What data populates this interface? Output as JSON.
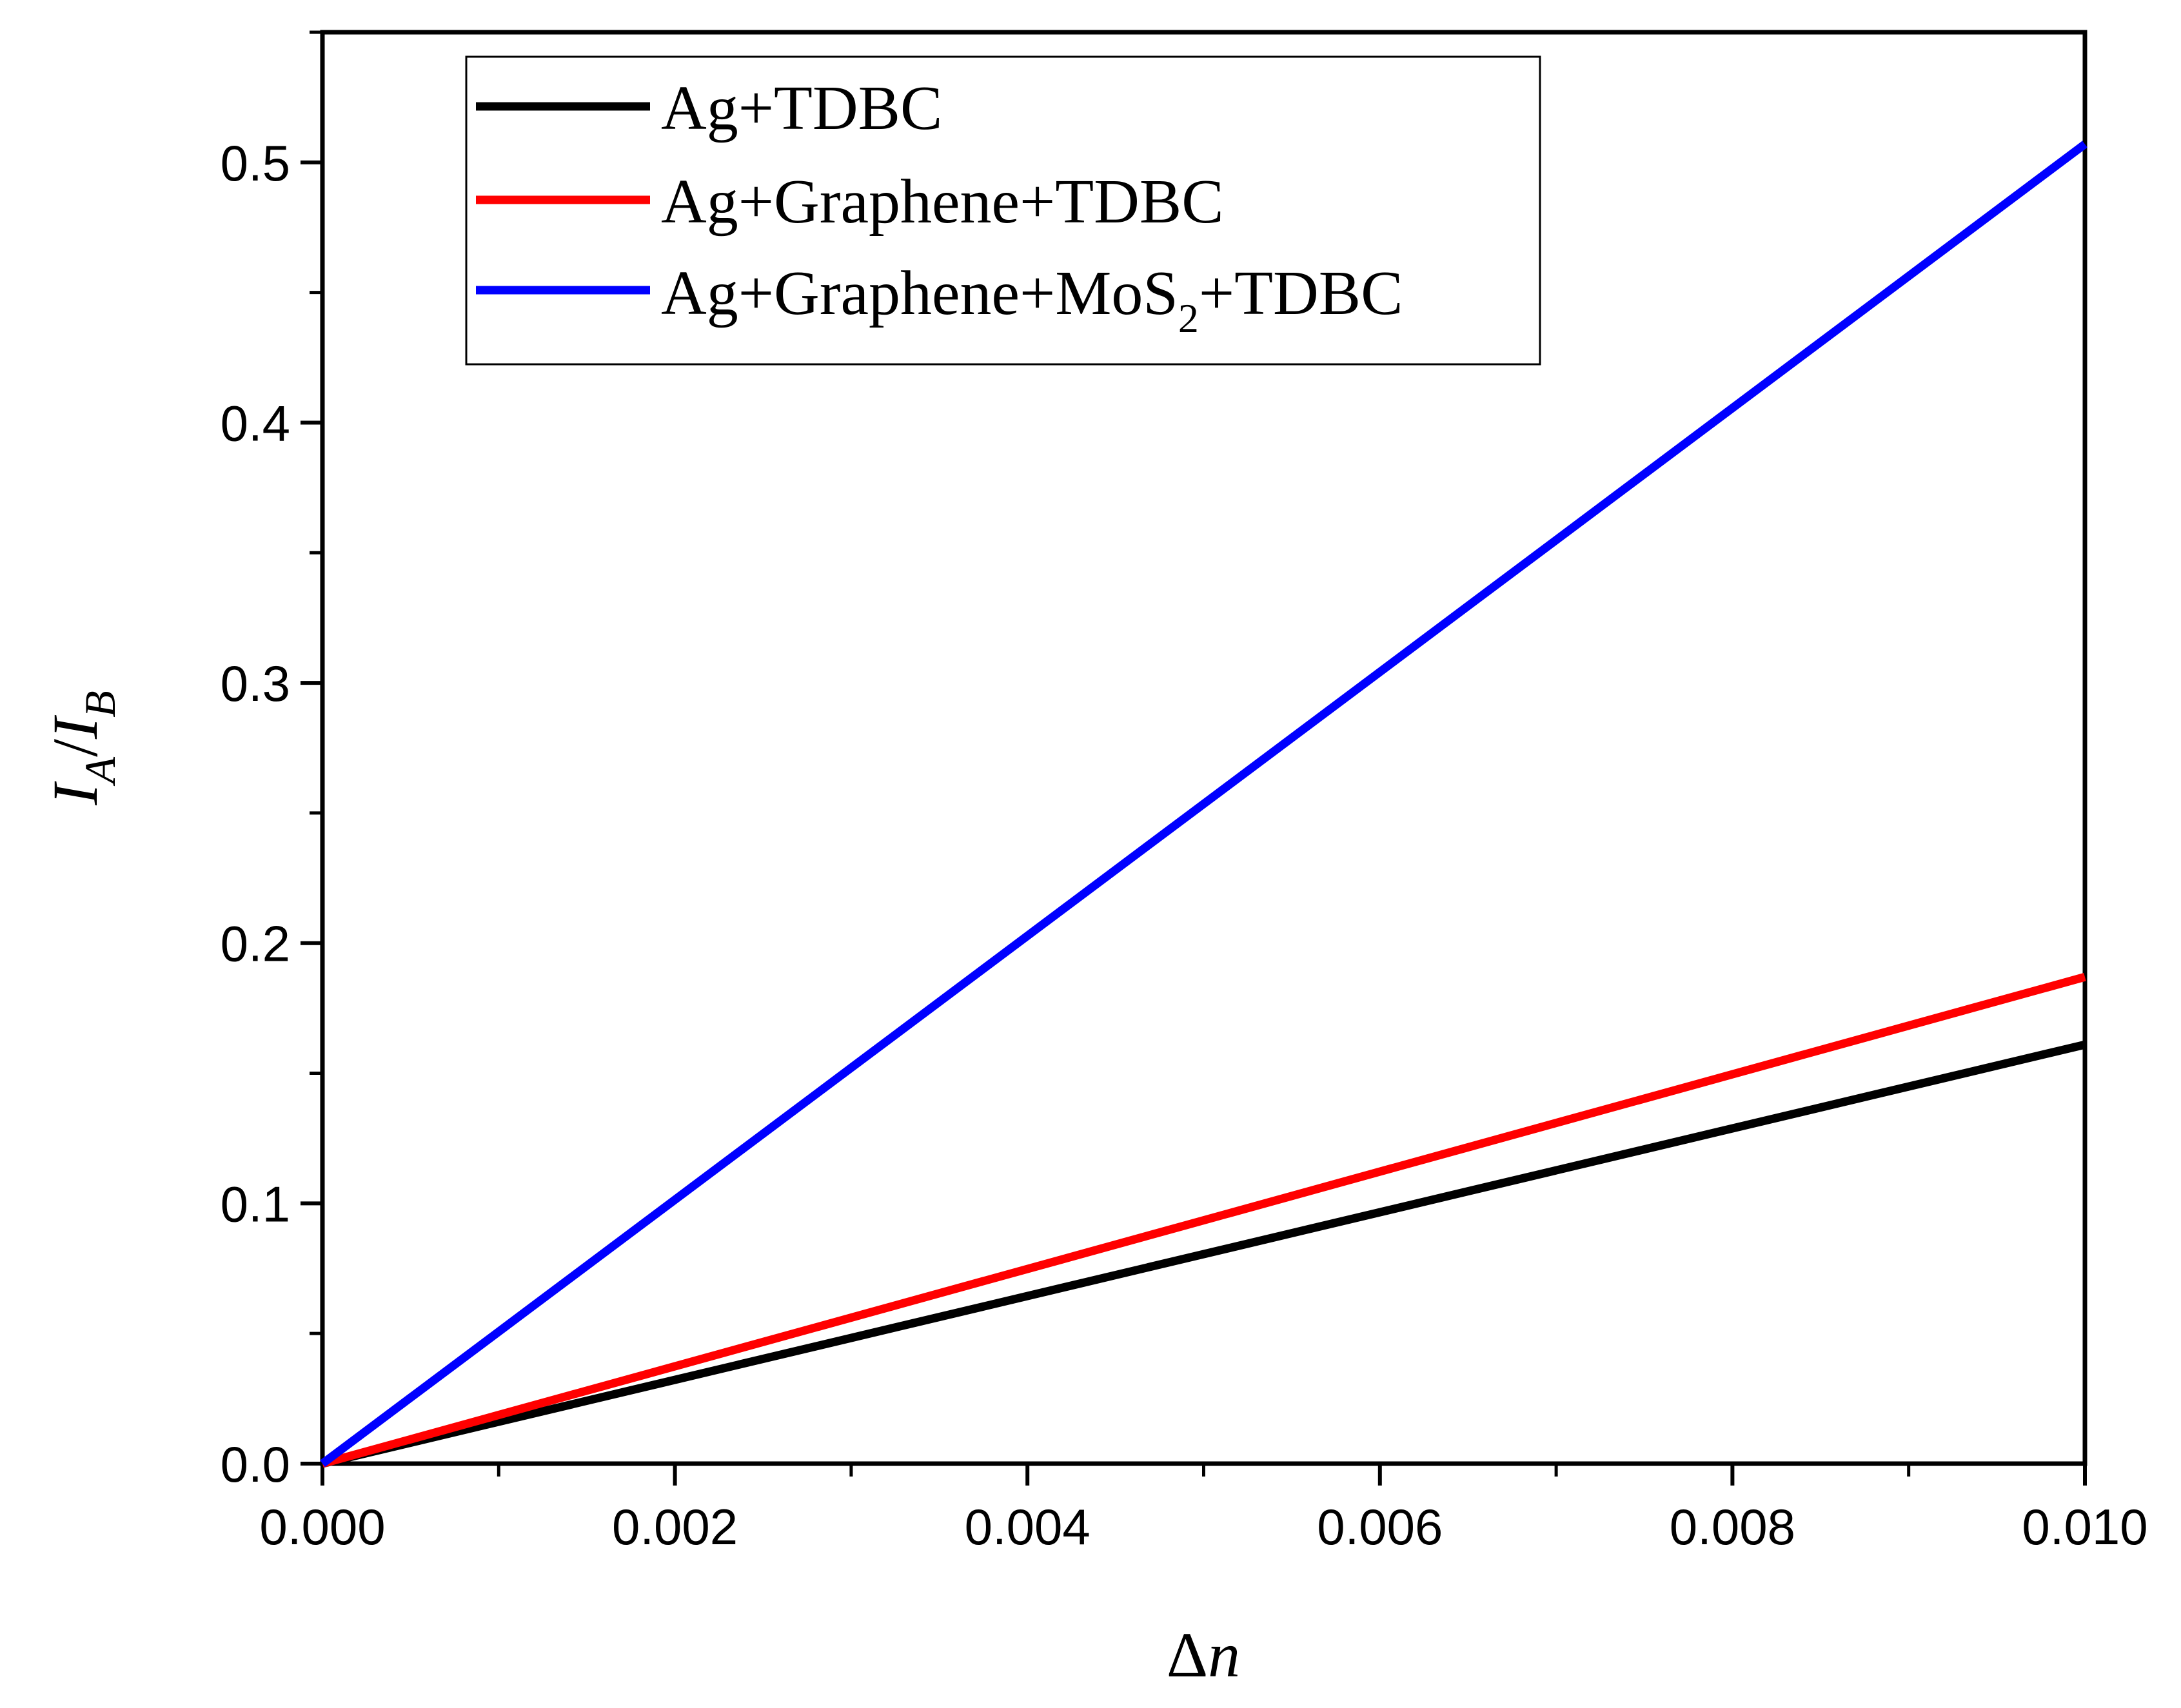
{
  "chart_data": {
    "type": "line",
    "title": "",
    "xlabel": "Δn",
    "ylabel": "I_A/I_B",
    "ylabel_parts": {
      "main1": "I",
      "sub1": "A",
      "slash": "/",
      "main2": "I",
      "sub2": "B"
    },
    "xlabel_parts": {
      "delta": "Δ",
      "var": "n"
    },
    "xlim": [
      0.0,
      0.01
    ],
    "ylim": [
      0.0,
      0.55
    ],
    "x_ticks": [
      0.0,
      0.002,
      0.004,
      0.006,
      0.008,
      0.01
    ],
    "x_tick_labels": [
      "0.000",
      "0.002",
      "0.004",
      "0.006",
      "0.008",
      "0.010"
    ],
    "y_ticks": [
      0.0,
      0.1,
      0.2,
      0.3,
      0.4,
      0.5
    ],
    "y_tick_labels": [
      "0.0",
      "0.1",
      "0.2",
      "0.3",
      "0.4",
      "0.5"
    ],
    "grid": false,
    "legend_position": "top-left",
    "series": [
      {
        "name": "Ag+TDBC",
        "label_parts": [
          "Ag+TDBC"
        ],
        "color": "#000000",
        "x": [
          0.0,
          0.01
        ],
        "y": [
          0.0,
          0.161
        ]
      },
      {
        "name": "Ag+Graphene+TDBC",
        "label_parts": [
          "Ag+Graphene+TDBC"
        ],
        "color": "#ff0000",
        "x": [
          0.0,
          0.01
        ],
        "y": [
          0.0,
          0.187
        ]
      },
      {
        "name": "Ag+Graphene+MoS2+TDBC",
        "label_parts": [
          "Ag+Graphene+MoS",
          "2",
          "+TDBC"
        ],
        "color": "#0000ff",
        "x": [
          0.0,
          0.01
        ],
        "y": [
          0.0,
          0.507
        ]
      }
    ]
  }
}
